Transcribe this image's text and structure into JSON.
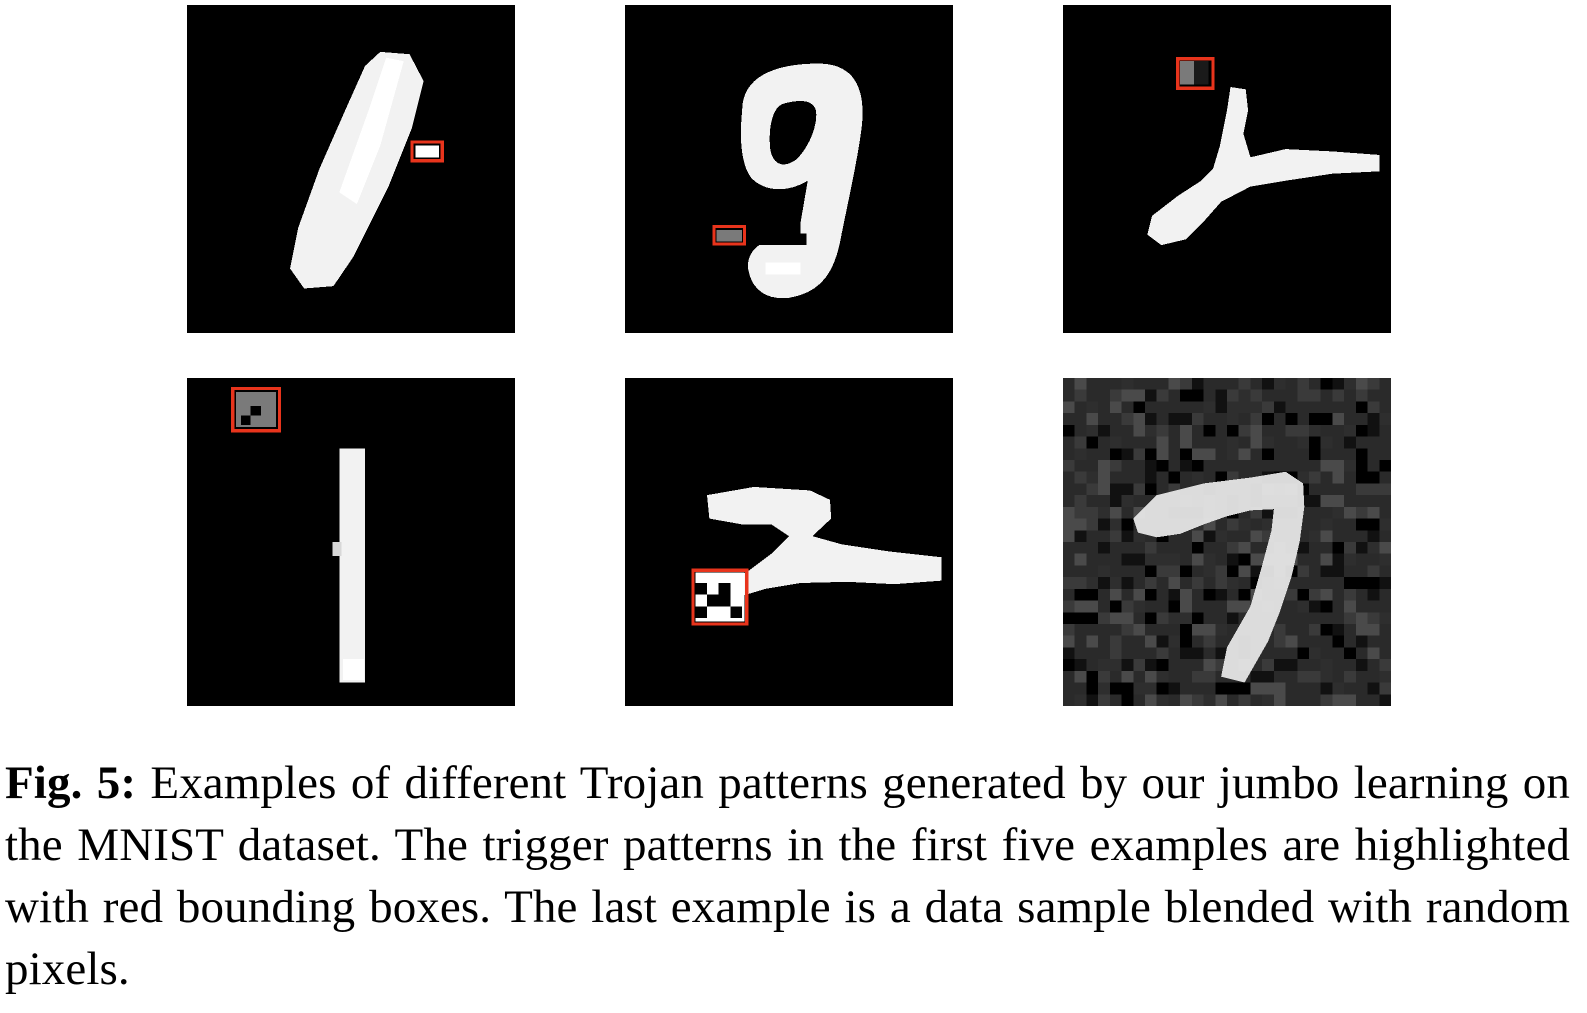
{
  "figure": {
    "panels": [
      {
        "digit": "1",
        "trigger": "small white block, highlighted with red bounding box"
      },
      {
        "digit": "9",
        "trigger": "small gray block, highlighted with red bounding box"
      },
      {
        "digit": "7",
        "trigger": "gray pixel patch, highlighted with red bounding box"
      },
      {
        "digit": "1",
        "trigger": "gray pixel patch in corner, highlighted with red bounding box"
      },
      {
        "digit": "2",
        "trigger": "black and white checker patch, highlighted with red bounding box"
      },
      {
        "digit": "7",
        "trigger": "blended with random pixels"
      }
    ],
    "colors": {
      "background": "#000000",
      "stroke": "#f2f2f2",
      "bounding_box": "#e8341c",
      "trigger_gray": "#7a7a7a",
      "noise": "#3a3a3a"
    }
  },
  "caption": {
    "label": "Fig. 5:",
    "text": " Examples of different Trojan patterns generated by our jumbo learning on the MNIST dataset. The trigger patterns in the first five examples are highlighted with red bounding boxes. The last example is a data sample blended with random pixels."
  }
}
